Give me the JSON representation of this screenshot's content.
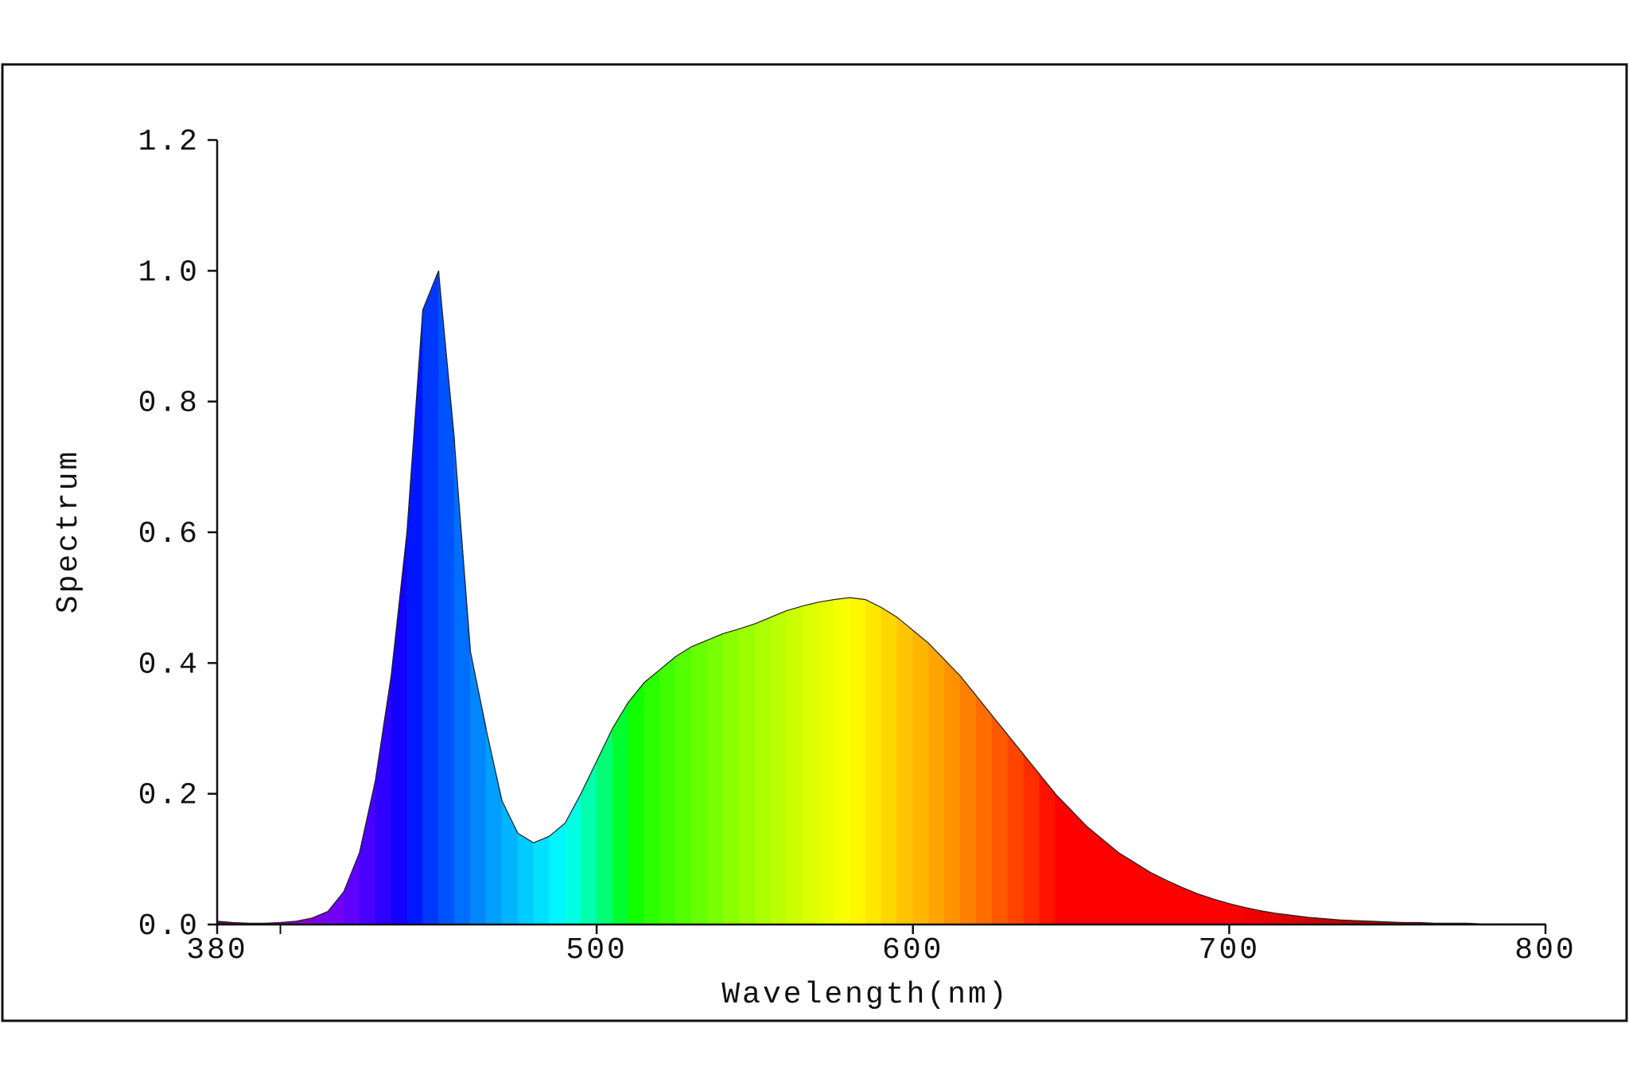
{
  "chart_data": {
    "type": "spectrum-area",
    "x_label": "Wavelength(nm)",
    "y_label": "Spectrum",
    "xlim": [
      380,
      800
    ],
    "xticks": [
      380,
      500,
      600,
      700,
      800
    ],
    "xminor_ticks": [
      400
    ],
    "ylim": [
      0,
      1.2
    ],
    "yticks": [
      {
        "value": 0,
        "label": "0.0"
      },
      0.2,
      0.4,
      0.6,
      0.8,
      {
        "value": 1,
        "label": "1.0"
      },
      1.2
    ],
    "fill": "wavelength-color",
    "x": [
      380,
      385,
      390,
      395,
      400,
      405,
      410,
      415,
      420,
      425,
      430,
      435,
      440,
      445,
      450,
      455,
      460,
      465,
      470,
      475,
      480,
      485,
      490,
      495,
      500,
      505,
      510,
      515,
      520,
      525,
      530,
      535,
      540,
      545,
      550,
      555,
      560,
      565,
      570,
      575,
      580,
      585,
      590,
      595,
      600,
      605,
      610,
      615,
      620,
      625,
      630,
      635,
      640,
      645,
      650,
      655,
      660,
      665,
      670,
      675,
      680,
      685,
      690,
      695,
      700,
      705,
      710,
      715,
      720,
      725,
      730,
      735,
      740,
      745,
      750,
      755,
      760,
      765,
      770,
      775,
      780,
      785,
      790,
      795,
      800
    ],
    "values": [
      0.005,
      0.003,
      0.002,
      0.002,
      0.003,
      0.005,
      0.01,
      0.02,
      0.05,
      0.11,
      0.22,
      0.38,
      0.6,
      0.94,
      1.0,
      0.74,
      0.42,
      0.3,
      0.19,
      0.14,
      0.125,
      0.135,
      0.155,
      0.2,
      0.25,
      0.3,
      0.34,
      0.37,
      0.39,
      0.41,
      0.425,
      0.435,
      0.445,
      0.452,
      0.46,
      0.47,
      0.48,
      0.487,
      0.493,
      0.497,
      0.5,
      0.497,
      0.485,
      0.47,
      0.45,
      0.43,
      0.405,
      0.38,
      0.35,
      0.32,
      0.29,
      0.26,
      0.23,
      0.2,
      0.175,
      0.15,
      0.13,
      0.11,
      0.095,
      0.08,
      0.068,
      0.057,
      0.047,
      0.039,
      0.032,
      0.026,
      0.021,
      0.017,
      0.014,
      0.011,
      0.009,
      0.007,
      0.006,
      0.005,
      0.004,
      0.003,
      0.003,
      0.002,
      0.002,
      0.002,
      0.001,
      0.001,
      0.001,
      0.001,
      0.001
    ]
  }
}
